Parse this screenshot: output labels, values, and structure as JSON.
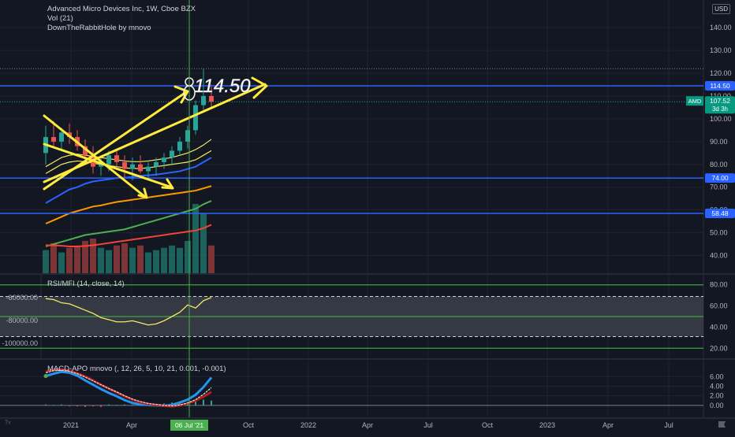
{
  "header": {
    "title": "Advanced Micro Devices Inc, 1W, Cboe BZX",
    "volume_label": "Vol (21)",
    "script_label": "DownTheRabbitHole by mnovo",
    "currency": "USD"
  },
  "colors": {
    "background": "#131722",
    "grid": "#1f2333",
    "up": "#26a69a",
    "down": "#ef5350",
    "level_line": "#2962ff",
    "drawing": "#ffeb3b",
    "cursor": "#4caf50"
  },
  "chart_data": [
    {
      "type": "line",
      "name": "price",
      "ylim": [
        35,
        148
      ],
      "yticks": [
        40,
        50,
        60,
        70,
        80,
        90,
        100,
        110,
        120,
        130,
        140
      ],
      "ylabel": "",
      "x_labels": [
        "2021",
        "Apr",
        "Jul",
        "Oct",
        "2022",
        "Apr",
        "Jul",
        "Oct",
        "2023",
        "Apr",
        "Jul"
      ],
      "cursor_label": "06 Jul '21",
      "price_tag": {
        "symbol": "AMD",
        "value": "107.52",
        "countdown": "3d 3h"
      },
      "levels": [
        {
          "value": 114.5,
          "label": "114.50"
        },
        {
          "value": 74.0,
          "label": "74.00"
        },
        {
          "value": 58.48,
          "label": "58.48"
        }
      ],
      "annotation": {
        "text": "114.50",
        "value": 114.5
      },
      "series": [
        {
          "name": "",
          "color": "#2962ff",
          "values": [
            63,
            65,
            67,
            69,
            70,
            71.5,
            72.5,
            73,
            73.5,
            74,
            74.2,
            74.5,
            75,
            75.2,
            75.5,
            76,
            76.5,
            77,
            78,
            79,
            81,
            83
          ]
        },
        {
          "name": "",
          "color": "#ff9800",
          "values": [
            54,
            55.5,
            57,
            58.5,
            59.5,
            60.5,
            61.5,
            62,
            62.8,
            63.5,
            64,
            64.5,
            65,
            65.5,
            66,
            66.5,
            67,
            67.5,
            68,
            68.5,
            69.5,
            70.5
          ]
        },
        {
          "name": "",
          "color": "#4caf50",
          "values": [
            44,
            45,
            46,
            47,
            48,
            49,
            49.5,
            50,
            50.5,
            51,
            51.5,
            52.5,
            53.5,
            54.5,
            55.5,
            56.5,
            57.5,
            58.5,
            59.5,
            60.5,
            62.5,
            64
          ]
        },
        {
          "name": "",
          "color": "#f44336",
          "values": [
            44.5,
            44.5,
            44.3,
            44,
            44,
            44.2,
            44.5,
            45,
            45.5,
            46,
            46.5,
            47,
            47.5,
            48,
            48.5,
            49,
            49.5,
            50,
            50.5,
            51,
            52,
            53.5
          ]
        },
        {
          "name": "",
          "color": "#f5e960",
          "values": [
            76,
            78,
            80,
            81,
            81.5,
            81.2,
            80.5,
            80,
            79.5,
            79,
            78.5,
            78.2,
            78.2,
            78.5,
            79,
            79.5,
            80,
            80.5,
            81,
            82,
            84,
            86
          ]
        },
        {
          "name": "",
          "color": "#f5e960",
          "values": [
            79,
            81,
            83,
            84,
            84.5,
            84,
            83.5,
            83,
            82.5,
            82,
            81.5,
            81.2,
            81.2,
            81.5,
            82,
            82.5,
            83,
            84,
            85,
            86.5,
            88.5,
            91
          ]
        }
      ],
      "candles": [
        {
          "o": 85,
          "h": 97,
          "l": 80,
          "c": 92
        },
        {
          "o": 92,
          "h": 99,
          "l": 88,
          "c": 90
        },
        {
          "o": 90,
          "h": 96,
          "l": 86,
          "c": 94
        },
        {
          "o": 94,
          "h": 98,
          "l": 89,
          "c": 92
        },
        {
          "o": 92,
          "h": 95,
          "l": 86,
          "c": 88
        },
        {
          "o": 88,
          "h": 91,
          "l": 80,
          "c": 84
        },
        {
          "o": 84,
          "h": 88,
          "l": 76,
          "c": 79
        },
        {
          "o": 79,
          "h": 84,
          "l": 75,
          "c": 80
        },
        {
          "o": 80,
          "h": 86,
          "l": 77,
          "c": 84
        },
        {
          "o": 84,
          "h": 87,
          "l": 79,
          "c": 81
        },
        {
          "o": 81,
          "h": 84,
          "l": 74,
          "c": 78
        },
        {
          "o": 78,
          "h": 83,
          "l": 73,
          "c": 80
        },
        {
          "o": 80,
          "h": 84,
          "l": 76,
          "c": 77
        },
        {
          "o": 77,
          "h": 81,
          "l": 73,
          "c": 79
        },
        {
          "o": 79,
          "h": 83,
          "l": 75,
          "c": 81
        },
        {
          "o": 81,
          "h": 85,
          "l": 78,
          "c": 83
        },
        {
          "o": 83,
          "h": 88,
          "l": 80,
          "c": 86
        },
        {
          "o": 86,
          "h": 92,
          "l": 84,
          "c": 90
        },
        {
          "o": 90,
          "h": 97,
          "l": 87,
          "c": 95
        },
        {
          "o": 95,
          "h": 108,
          "l": 93,
          "c": 106
        },
        {
          "o": 106,
          "h": 122,
          "l": 104,
          "c": 110
        },
        {
          "o": 110,
          "h": 115,
          "l": 105,
          "c": 107.5
        }
      ],
      "volume": [
        {
          "v": 10,
          "up": true
        },
        {
          "v": 13,
          "up": false
        },
        {
          "v": 9,
          "up": true
        },
        {
          "v": 11,
          "up": false
        },
        {
          "v": 12,
          "up": false
        },
        {
          "v": 14,
          "up": false
        },
        {
          "v": 15,
          "up": false
        },
        {
          "v": 11,
          "up": true
        },
        {
          "v": 10,
          "up": true
        },
        {
          "v": 12,
          "up": false
        },
        {
          "v": 13,
          "up": false
        },
        {
          "v": 11,
          "up": true
        },
        {
          "v": 12,
          "up": false
        },
        {
          "v": 9,
          "up": true
        },
        {
          "v": 10,
          "up": true
        },
        {
          "v": 11,
          "up": true
        },
        {
          "v": 12,
          "up": true
        },
        {
          "v": 11,
          "up": true
        },
        {
          "v": 14,
          "up": true
        },
        {
          "v": 30,
          "up": true
        },
        {
          "v": 26,
          "up": true
        },
        {
          "v": 12,
          "up": false
        }
      ]
    },
    {
      "type": "line",
      "name": "RSI/MFI",
      "label": "RSI/MFI (14, close, 14)",
      "ylim": [
        15,
        85
      ],
      "yticks": [
        20,
        40,
        60,
        80
      ],
      "left_ticks": [
        "-60000.00",
        "-80000.00",
        "-100000.00"
      ],
      "bands": {
        "outer": [
          20,
          80
        ],
        "inner": [
          50
        ],
        "dashed": [
          31,
          69
        ]
      },
      "series": [
        {
          "name": "",
          "color": "#f5e960",
          "values": [
            67,
            66,
            63,
            62,
            59,
            56,
            53,
            49,
            47,
            45,
            45,
            46,
            44,
            42,
            43,
            46,
            50,
            54,
            61,
            58,
            65,
            68
          ]
        }
      ]
    },
    {
      "type": "line",
      "name": "MACD-APO",
      "label": "MACD-APO mnovo (, 12, 26, 5, 10, 21, 0.001, -0.001)",
      "ylim": [
        -1.5,
        8.5
      ],
      "yticks": [
        0,
        2,
        4,
        6
      ],
      "tick_labels": [
        "0.00",
        "2.00",
        "4.00",
        "6.00"
      ],
      "series": [
        {
          "name": "",
          "color": "#2196f3",
          "values": [
            6.1,
            6.6,
            7,
            6.8,
            6.2,
            5.2,
            4.3,
            3.4,
            2.6,
            1.9,
            1.1,
            0.5,
            0.2,
            0.1,
            0.0,
            -0.1,
            0.1,
            0.6,
            1.2,
            2.2,
            3.8,
            5.8
          ]
        },
        {
          "name": "",
          "color": "#b71c1c",
          "values": [
            7,
            7.4,
            7.5,
            7.2,
            6.7,
            6,
            5.2,
            4.3,
            3.5,
            2.7,
            1.9,
            1.2,
            0.6,
            0.3,
            0.1,
            -0.1,
            -0.2,
            0.0,
            0.4,
            1.0,
            1.8,
            2.8
          ]
        },
        {
          "name": "",
          "color": "#e0e0e0",
          "values": [
            6.8,
            7.2,
            7.3,
            7.1,
            6.6,
            5.9,
            5.1,
            4.3,
            3.5,
            2.8,
            2.0,
            1.3,
            0.8,
            0.4,
            0.2,
            0.0,
            -0.1,
            0.1,
            0.5,
            1.2,
            2.3,
            3.7
          ]
        }
      ],
      "histogram": [
        0.2,
        0.1,
        0.2,
        -0.1,
        -0.2,
        -0.3,
        -0.2,
        -0.3,
        0.2,
        0.1,
        0.2,
        0.1,
        0.2,
        0.2,
        0.3,
        0.4,
        0.6,
        0.5,
        0.7,
        0.9,
        1.2,
        1.0
      ]
    }
  ]
}
